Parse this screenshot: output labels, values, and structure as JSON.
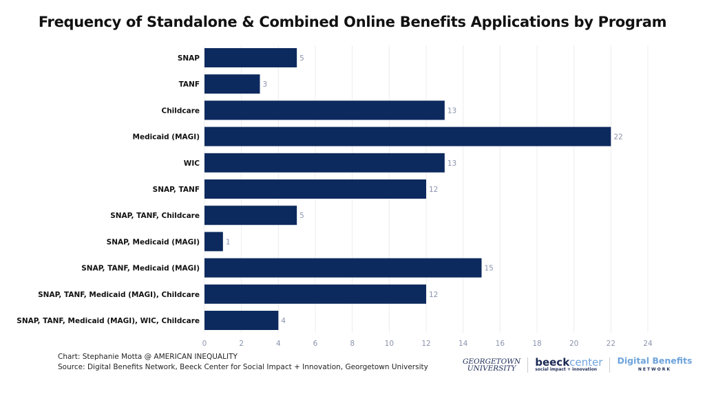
{
  "chart_data": {
    "type": "bar",
    "orientation": "horizontal",
    "title": "Frequency of Standalone & Combined Online Benefits Applications by Program",
    "categories": [
      "SNAP",
      "TANF",
      "Childcare",
      "Medicaid (MAGI)",
      "WIC",
      "SNAP, TANF",
      "SNAP, TANF, Childcare",
      "SNAP, Medicaid (MAGI)",
      "SNAP, TANF,  Medicaid (MAGI)",
      "SNAP, TANF,  Medicaid (MAGI), Childcare",
      "SNAP, TANF,  Medicaid (MAGI), WIC, Childcare"
    ],
    "values": [
      5,
      3,
      13,
      22,
      13,
      12,
      5,
      1,
      15,
      12,
      4
    ],
    "xlim": [
      0,
      24
    ],
    "xticks": [
      0,
      2,
      4,
      6,
      8,
      10,
      12,
      14,
      16,
      18,
      20,
      22,
      24
    ],
    "xlabel": "",
    "ylabel": "",
    "grid": "vertical",
    "data_labels": true,
    "bar_color": "#0d2a5e"
  },
  "credits": {
    "chart": "Chart: Stephanie Motta @ AMERICAN INEQUALITY",
    "source": "Source: Digital Benefits Network, Beeck Center for Social Impact + Innovation, Georgetown University"
  },
  "logos": {
    "georgetown": [
      "GEORGETOWN",
      "UNIVERSITY"
    ],
    "beeck": {
      "a": "beeck",
      "b": "center",
      "tag": "social impact + innovation"
    },
    "dbn": {
      "name": "Digital Benefits",
      "sub": "NETWORK"
    }
  }
}
